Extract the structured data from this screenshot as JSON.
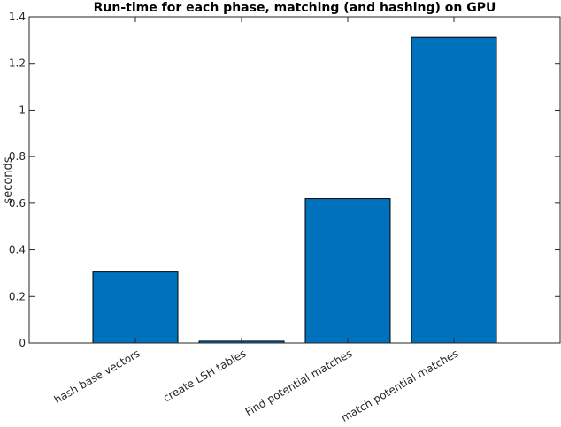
{
  "chart_data": {
    "type": "bar",
    "title": "Run-time for each phase, matching (and hashing) on GPU",
    "xlabel": "",
    "ylabel": "seconds",
    "categories": [
      "hash base vectors",
      "create LSH tables",
      "Find potential matches",
      "match potential matches"
    ],
    "values": [
      0.305,
      0.008,
      0.62,
      1.312
    ],
    "ylim": [
      0,
      1.4
    ],
    "yticks": [
      0,
      0.2,
      0.4,
      0.6,
      0.8,
      1,
      1.2,
      1.4
    ],
    "ytick_labels": [
      "0",
      "0.2",
      "0.4",
      "0.6",
      "0.8",
      "1",
      "1.2",
      "1.4"
    ],
    "grid": false,
    "bar_color": "#0072bd",
    "bar_edge_color": "#000000"
  }
}
